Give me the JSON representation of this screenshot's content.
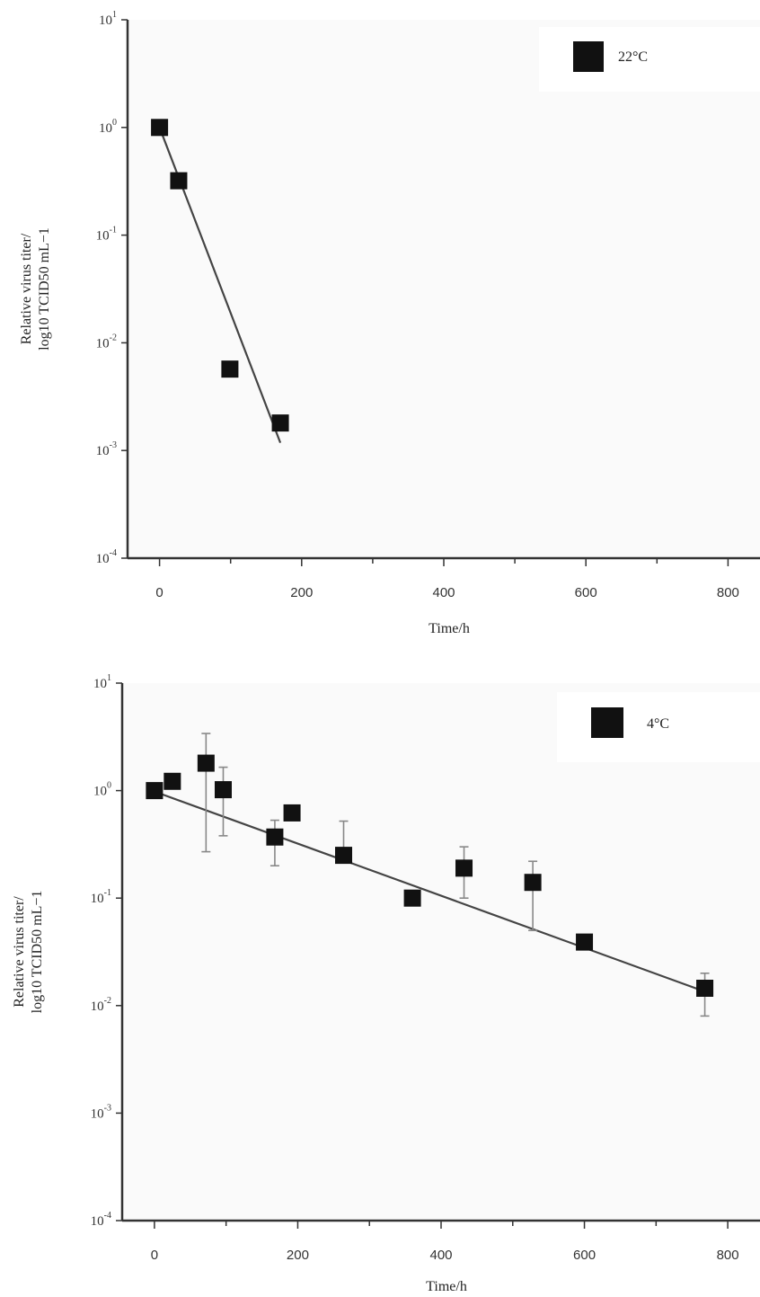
{
  "chart_data": [
    {
      "type": "scatter",
      "xlabel": "Time/h",
      "ylabel_line1": "Relative virus titer/",
      "ylabel_line2": "log10 TCID50 mL−1",
      "x_ticks": [
        0,
        200,
        400,
        600,
        800
      ],
      "xlim": [
        -45,
        845
      ],
      "y_ticks": [
        {
          "value": 10,
          "base": "10",
          "exp": "1"
        },
        {
          "value": 1,
          "base": "10",
          "exp": "0"
        },
        {
          "value": 0.1,
          "base": "10",
          "exp": "-1"
        },
        {
          "value": 0.01,
          "base": "10",
          "exp": "-2"
        },
        {
          "value": 0.001,
          "base": "10",
          "exp": "-3"
        },
        {
          "value": 0.0001,
          "base": "10",
          "exp": "-4"
        }
      ],
      "ylim": [
        0.0001,
        10
      ],
      "yscale": "log",
      "legend": "top-right",
      "series": [
        {
          "name": "22°C",
          "points": [
            {
              "x": 0,
              "y": 1.0
            },
            {
              "x": 27,
              "y": 0.32
            },
            {
              "x": 99,
              "y": 0.0057
            },
            {
              "x": 170,
              "y": 0.0018
            }
          ],
          "fit": [
            {
              "x": 0,
              "y": 1.0
            },
            {
              "x": 170,
              "y": 0.00118
            }
          ]
        }
      ]
    },
    {
      "type": "scatter",
      "xlabel": "Time/h",
      "ylabel_line1": "Relative virus titer/",
      "ylabel_line2": "log10 TCID50 mL−1",
      "x_ticks": [
        0,
        200,
        400,
        600,
        800
      ],
      "xlim": [
        -45,
        845
      ],
      "y_ticks": [
        {
          "value": 10,
          "base": "10",
          "exp": "1"
        },
        {
          "value": 1,
          "base": "10",
          "exp": "0"
        },
        {
          "value": 0.1,
          "base": "10",
          "exp": "-1"
        },
        {
          "value": 0.01,
          "base": "10",
          "exp": "-2"
        },
        {
          "value": 0.001,
          "base": "10",
          "exp": "-3"
        },
        {
          "value": 0.0001,
          "base": "10",
          "exp": "-4"
        }
      ],
      "ylim": [
        0.0001,
        10
      ],
      "yscale": "log",
      "legend": "top-right",
      "series": [
        {
          "name": "4°C",
          "points": [
            {
              "x": 0,
              "y": 1.0
            },
            {
              "x": 25,
              "y": 1.22
            },
            {
              "x": 72,
              "y": 1.8,
              "err_low": 0.27,
              "err_high": 3.4
            },
            {
              "x": 96,
              "y": 1.02,
              "err_low": 0.38,
              "err_high": 1.65
            },
            {
              "x": 168,
              "y": 0.37,
              "err_low": 0.2,
              "err_high": 0.53
            },
            {
              "x": 192,
              "y": 0.62
            },
            {
              "x": 264,
              "y": 0.25,
              "err_high": 0.52
            },
            {
              "x": 360,
              "y": 0.1
            },
            {
              "x": 432,
              "y": 0.19,
              "err_low": 0.1,
              "err_high": 0.3
            },
            {
              "x": 528,
              "y": 0.14,
              "err_low": 0.05,
              "err_high": 0.22
            },
            {
              "x": 600,
              "y": 0.039
            },
            {
              "x": 768,
              "y": 0.0145,
              "err_low": 0.008,
              "err_high": 0.02
            }
          ],
          "fit": [
            {
              "x": 0,
              "y": 0.98
            },
            {
              "x": 768,
              "y": 0.0135
            }
          ]
        }
      ]
    }
  ]
}
